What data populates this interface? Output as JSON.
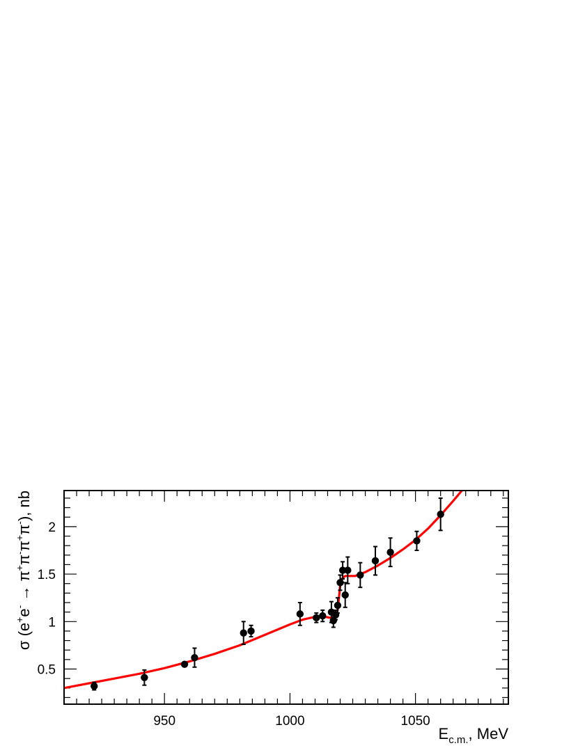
{
  "chart_data": {
    "type": "scatter",
    "title": "",
    "xlabel": {
      "main": "E",
      "sub": "c.m.",
      "rest": ", MeV"
    },
    "ylabel": {
      "parts": [
        {
          "text": "σ (e",
          "sup": false
        },
        {
          "text": "+",
          "sup": true
        },
        {
          "text": "e",
          "sup": false
        },
        {
          "text": "-",
          "sup": true
        },
        {
          "text": " → π",
          "sup": false
        },
        {
          "text": "+",
          "sup": true
        },
        {
          "text": "π",
          "sup": false
        },
        {
          "text": "-",
          "sup": true
        },
        {
          "text": "π",
          "sup": false
        },
        {
          "text": "+",
          "sup": true
        },
        {
          "text": "π",
          "sup": false
        },
        {
          "text": "-",
          "sup": true
        },
        {
          "text": "), nb",
          "sup": false
        }
      ]
    },
    "xlim": [
      910,
      1087
    ],
    "ylim": [
      0.13,
      2.38
    ],
    "x_ticks": [
      950,
      1000,
      1050
    ],
    "x_tick_labels": [
      "950",
      "1000",
      "1050"
    ],
    "y_ticks": [
      0.5,
      1,
      1.5,
      2
    ],
    "y_tick_labels": [
      "0.5",
      "1",
      "1.5",
      "2"
    ],
    "grid": false,
    "legend": "none",
    "series": [
      {
        "kind": "points",
        "color": "#000000",
        "points": [
          {
            "x": 922.0,
            "y": 0.32,
            "err": 0.04
          },
          {
            "x": 942.0,
            "y": 0.41,
            "err": 0.08
          },
          {
            "x": 958.0,
            "y": 0.55,
            "err": 0.02
          },
          {
            "x": 962.0,
            "y": 0.62,
            "err": 0.1
          },
          {
            "x": 981.5,
            "y": 0.88,
            "err": 0.12
          },
          {
            "x": 984.5,
            "y": 0.9,
            "err": 0.06
          },
          {
            "x": 1004.0,
            "y": 1.08,
            "err": 0.12
          },
          {
            "x": 1010.5,
            "y": 1.04,
            "err": 0.05
          },
          {
            "x": 1013.0,
            "y": 1.06,
            "err": 0.06
          },
          {
            "x": 1016.5,
            "y": 1.1,
            "err": 0.11
          },
          {
            "x": 1017.3,
            "y": 1.01,
            "err": 0.07
          },
          {
            "x": 1018.2,
            "y": 1.07,
            "err": 0.05
          },
          {
            "x": 1019.0,
            "y": 1.17,
            "err": 0.08
          },
          {
            "x": 1020.0,
            "y": 1.41,
            "err": 0.08
          },
          {
            "x": 1021.0,
            "y": 1.54,
            "err": 0.09
          },
          {
            "x": 1022.0,
            "y": 1.28,
            "err": 0.13
          },
          {
            "x": 1023.0,
            "y": 1.54,
            "err": 0.14
          },
          {
            "x": 1028.0,
            "y": 1.49,
            "err": 0.13
          },
          {
            "x": 1034.0,
            "y": 1.64,
            "err": 0.15
          },
          {
            "x": 1040.0,
            "y": 1.73,
            "err": 0.15
          },
          {
            "x": 1050.5,
            "y": 1.85,
            "err": 0.1
          },
          {
            "x": 1060.0,
            "y": 2.13,
            "err": 0.17
          }
        ]
      },
      {
        "kind": "curve",
        "color": "#ff0000",
        "x": [
          910,
          920,
          930,
          940,
          950,
          960,
          970,
          980,
          990,
          1000,
          1005,
          1010,
          1014,
          1016,
          1018,
          1019,
          1019.5,
          1020,
          1021,
          1022,
          1024,
          1026,
          1030,
          1035,
          1040,
          1045,
          1050,
          1055,
          1060,
          1065,
          1068.5
        ],
        "y": [
          0.3,
          0.35,
          0.4,
          0.45,
          0.51,
          0.58,
          0.66,
          0.75,
          0.86,
          0.97,
          1.02,
          1.05,
          1.05,
          1.04,
          1.05,
          1.12,
          1.25,
          1.38,
          1.46,
          1.48,
          1.48,
          1.48,
          1.52,
          1.59,
          1.67,
          1.76,
          1.86,
          1.98,
          2.12,
          2.27,
          2.38
        ]
      }
    ]
  }
}
